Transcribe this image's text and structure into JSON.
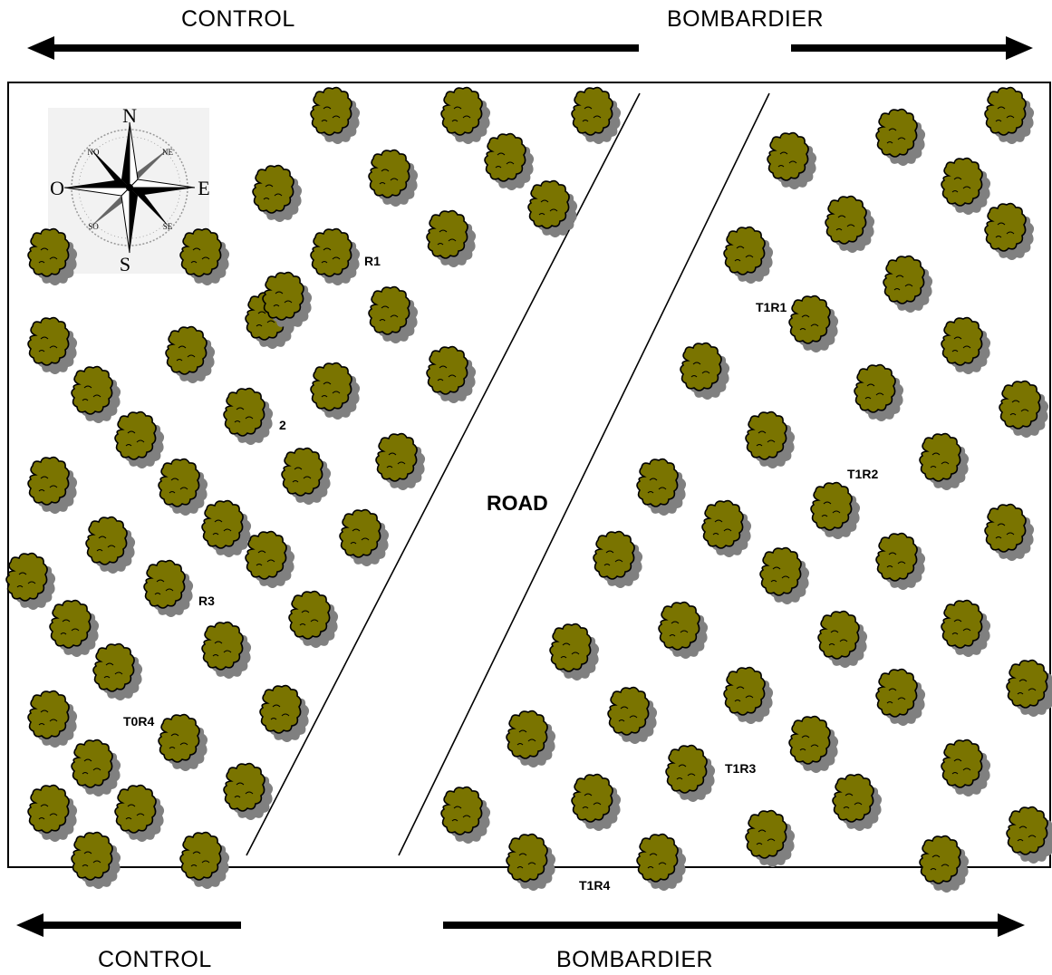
{
  "arrows": {
    "top_left": "CONTROL",
    "top_right": "BOMBARDIER",
    "bottom_left": "CONTROL",
    "bottom_right": "BOMBARDIER"
  },
  "road": {
    "label": "ROAD"
  },
  "compass": {
    "north": "N",
    "south": "S",
    "east": "E",
    "west": "O",
    "northwest": "NO",
    "northeast": "NE",
    "southwest": "SO",
    "southeast": "SE"
  },
  "plot_labels": {
    "r1": "R1",
    "r2": "2",
    "r3": "R3",
    "t0r4": "T0R4",
    "t1r1": "T1R1",
    "t1r2": "T1R2",
    "t1r3": "T1R3",
    "t1r4": "T1R4"
  },
  "colors": {
    "tree_fill": "#7a7400",
    "tree_shadow": "#808080",
    "line": "#000000"
  },
  "icons": {
    "tree": "olive-tree-icon",
    "compass": "compass-rose-icon"
  }
}
